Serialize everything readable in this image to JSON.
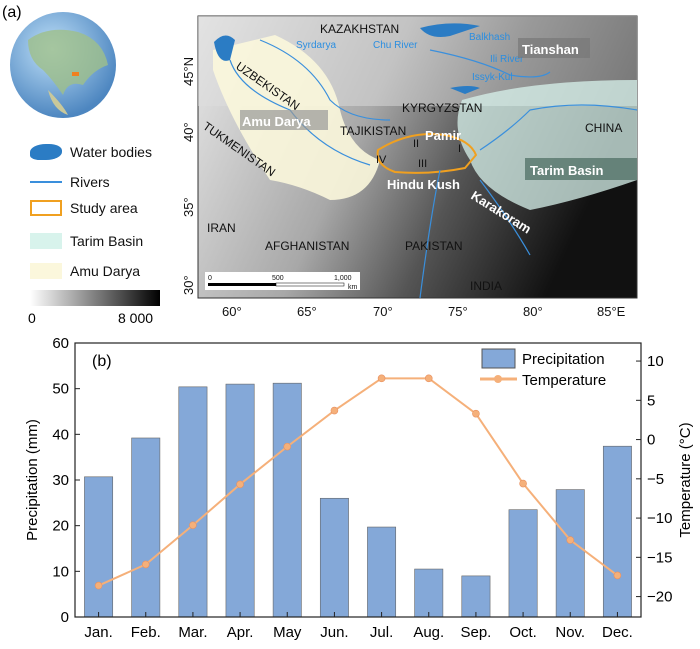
{
  "panel_a": {
    "label": "(a)",
    "legend": [
      {
        "label": "Water bodies",
        "color": "#2b7cc4"
      },
      {
        "label": "Rivers",
        "color": "#3a8fdc"
      },
      {
        "label": "Study area",
        "color": "#f0a020"
      },
      {
        "label": "Tarim Basin",
        "color": "#d8f3ec"
      },
      {
        "label": "Amu Darya",
        "color": "#fbf7dc"
      }
    ],
    "elevation_min": "0",
    "elevation_max": "8 000",
    "countries": [
      "KAZAKHSTAN",
      "UZBEKISTAN",
      "TUKMENISTAN",
      "TAJIKISTAN",
      "KYRGYZSTAN",
      "CHINA",
      "IRAN",
      "AFGHANISTAN",
      "PAKISTAN",
      "INDIA"
    ],
    "water_labels": [
      "Syrdarya",
      "Chu River",
      "Balkhash",
      "Ili River",
      "Issyk-Kul"
    ],
    "region_labels": [
      "Tianshan",
      "Amu Darya",
      "Pamir",
      "Tarim Basin",
      "Hindu Kush",
      "Karakoram"
    ],
    "subregions": [
      "I",
      "II",
      "III",
      "IV"
    ],
    "lon_ticks": [
      "60°",
      "65°",
      "70°",
      "75°",
      "80°",
      "85°E"
    ],
    "lat_ticks": [
      "45°N",
      "40°",
      "35°",
      "30°"
    ],
    "scalebar": {
      "ticks": [
        "0",
        "500",
        "1,000"
      ],
      "unit": "km"
    }
  },
  "chart_data": {
    "type": "bar",
    "panel_label": "(b)",
    "categories": [
      "Jan.",
      "Feb.",
      "Mar.",
      "Apr.",
      "May",
      "Jun.",
      "Jul.",
      "Aug.",
      "Sep.",
      "Oct.",
      "Nov.",
      "Dec."
    ],
    "series": [
      {
        "name": "Precipitation",
        "type": "bar",
        "axis": "left",
        "color": "#84a8d8",
        "values": [
          30.7,
          39.2,
          50.4,
          51.0,
          51.2,
          26.0,
          19.7,
          10.5,
          9.0,
          23.5,
          27.9,
          37.4
        ]
      },
      {
        "name": "Temperature",
        "type": "line",
        "axis": "right",
        "color": "#f5b07a",
        "values": [
          -18.6,
          -15.9,
          -10.9,
          -5.7,
          -0.9,
          3.7,
          7.8,
          7.8,
          3.3,
          -5.6,
          -12.8,
          -17.3
        ]
      }
    ],
    "ylabel": "Precipitation (mm)",
    "ylim": [
      0,
      60
    ],
    "yticks": [
      "0",
      "10",
      "20",
      "30",
      "40",
      "50",
      "60"
    ],
    "y2label": "Temperature (°C)",
    "y2lim": [
      -22.6,
      12.3
    ],
    "y2ticks": [
      "−20",
      "−15",
      "−10",
      "−5",
      "0",
      "5",
      "10"
    ],
    "legend_position": "top-right"
  }
}
